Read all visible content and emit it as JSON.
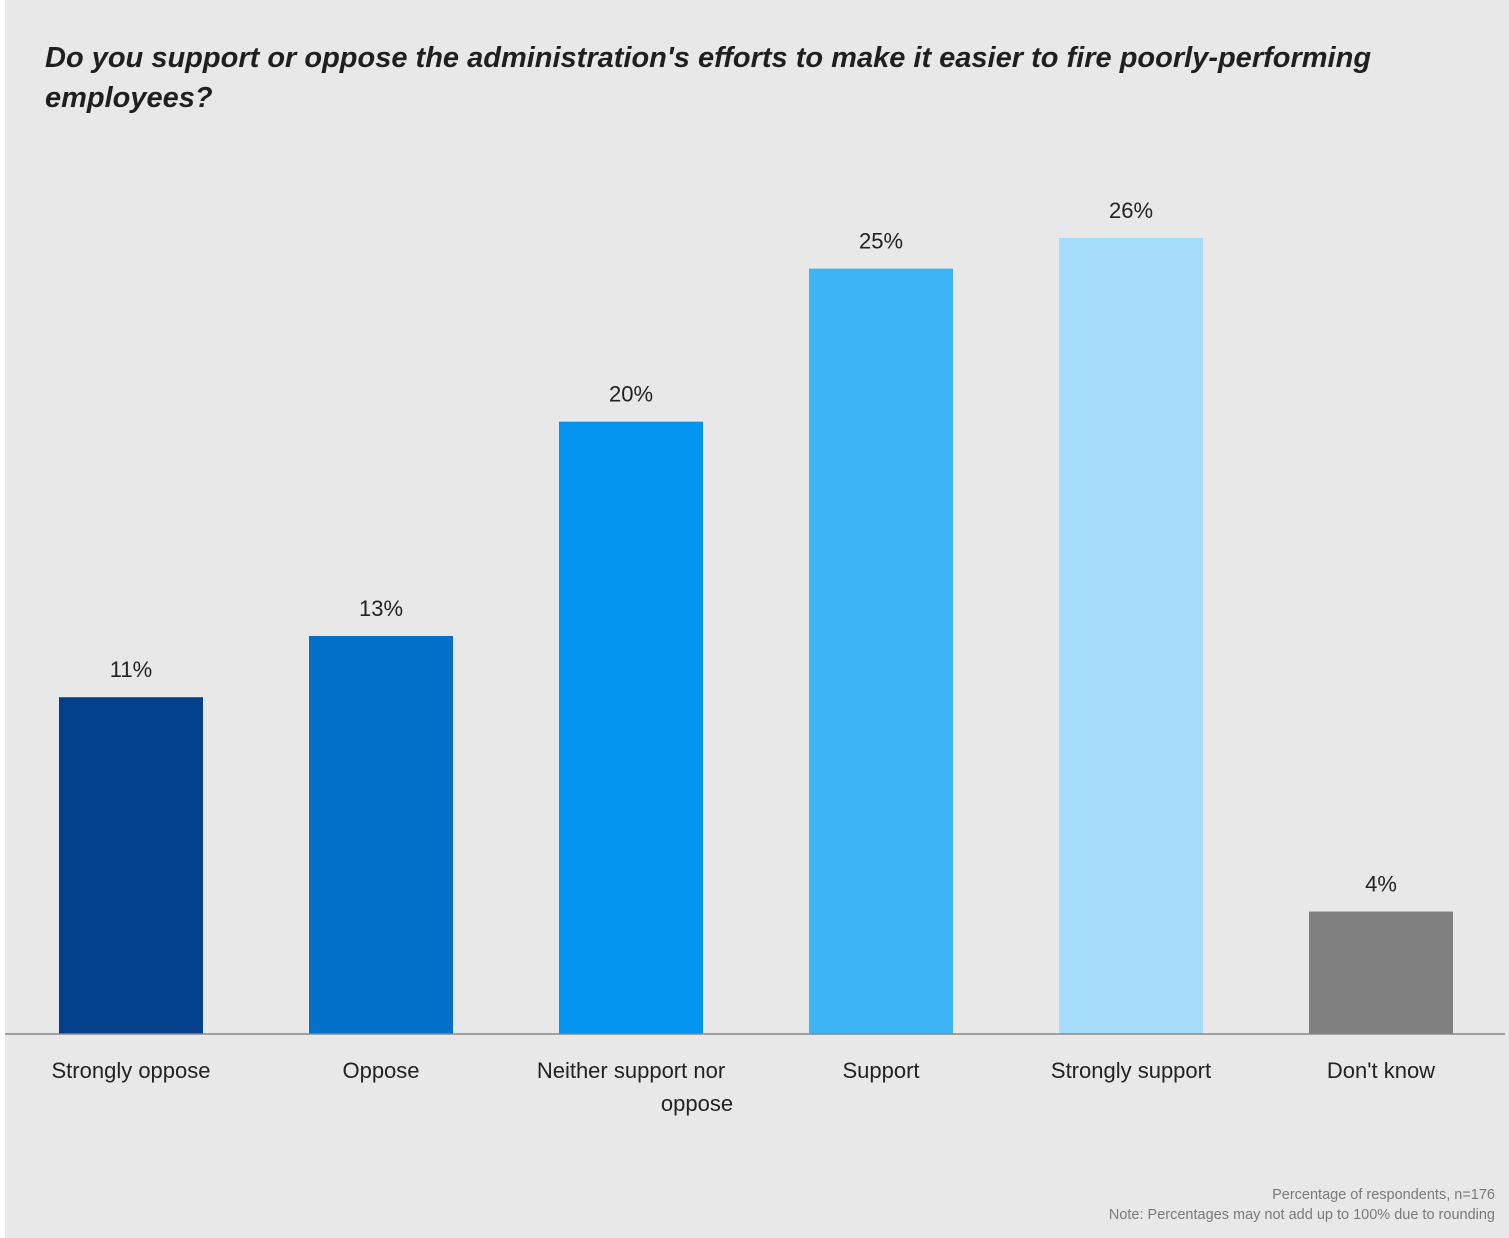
{
  "chart_data": {
    "type": "bar",
    "title": "Do you support or oppose the administration's efforts to make it easier to fire poorly-performing employees?",
    "categories": [
      "Strongly oppose",
      "Oppose",
      "Neither support nor oppose",
      "Support",
      "Strongly support",
      "Don't know"
    ],
    "category_lines": [
      [
        "Strongly oppose"
      ],
      [
        "Oppose"
      ],
      [
        "Neither support nor",
        "oppose"
      ],
      [
        "Support"
      ],
      [
        "Strongly support"
      ],
      [
        "Don't know"
      ]
    ],
    "values": [
      11,
      13,
      20,
      25,
      26,
      4
    ],
    "data_labels": [
      "11%",
      "13%",
      "20%",
      "25%",
      "26%",
      "4%"
    ],
    "colors": [
      "#03408c",
      "#0270c8",
      "#0394f0",
      "#3db5f5",
      "#a5dcf9",
      "#808080"
    ],
    "xlabel": "",
    "ylabel": "",
    "ylim": [
      0,
      26
    ],
    "grid": false,
    "notes": [
      "Percentage of respondents, n=176",
      "Note: Percentages may not add up to 100% due to rounding"
    ]
  }
}
